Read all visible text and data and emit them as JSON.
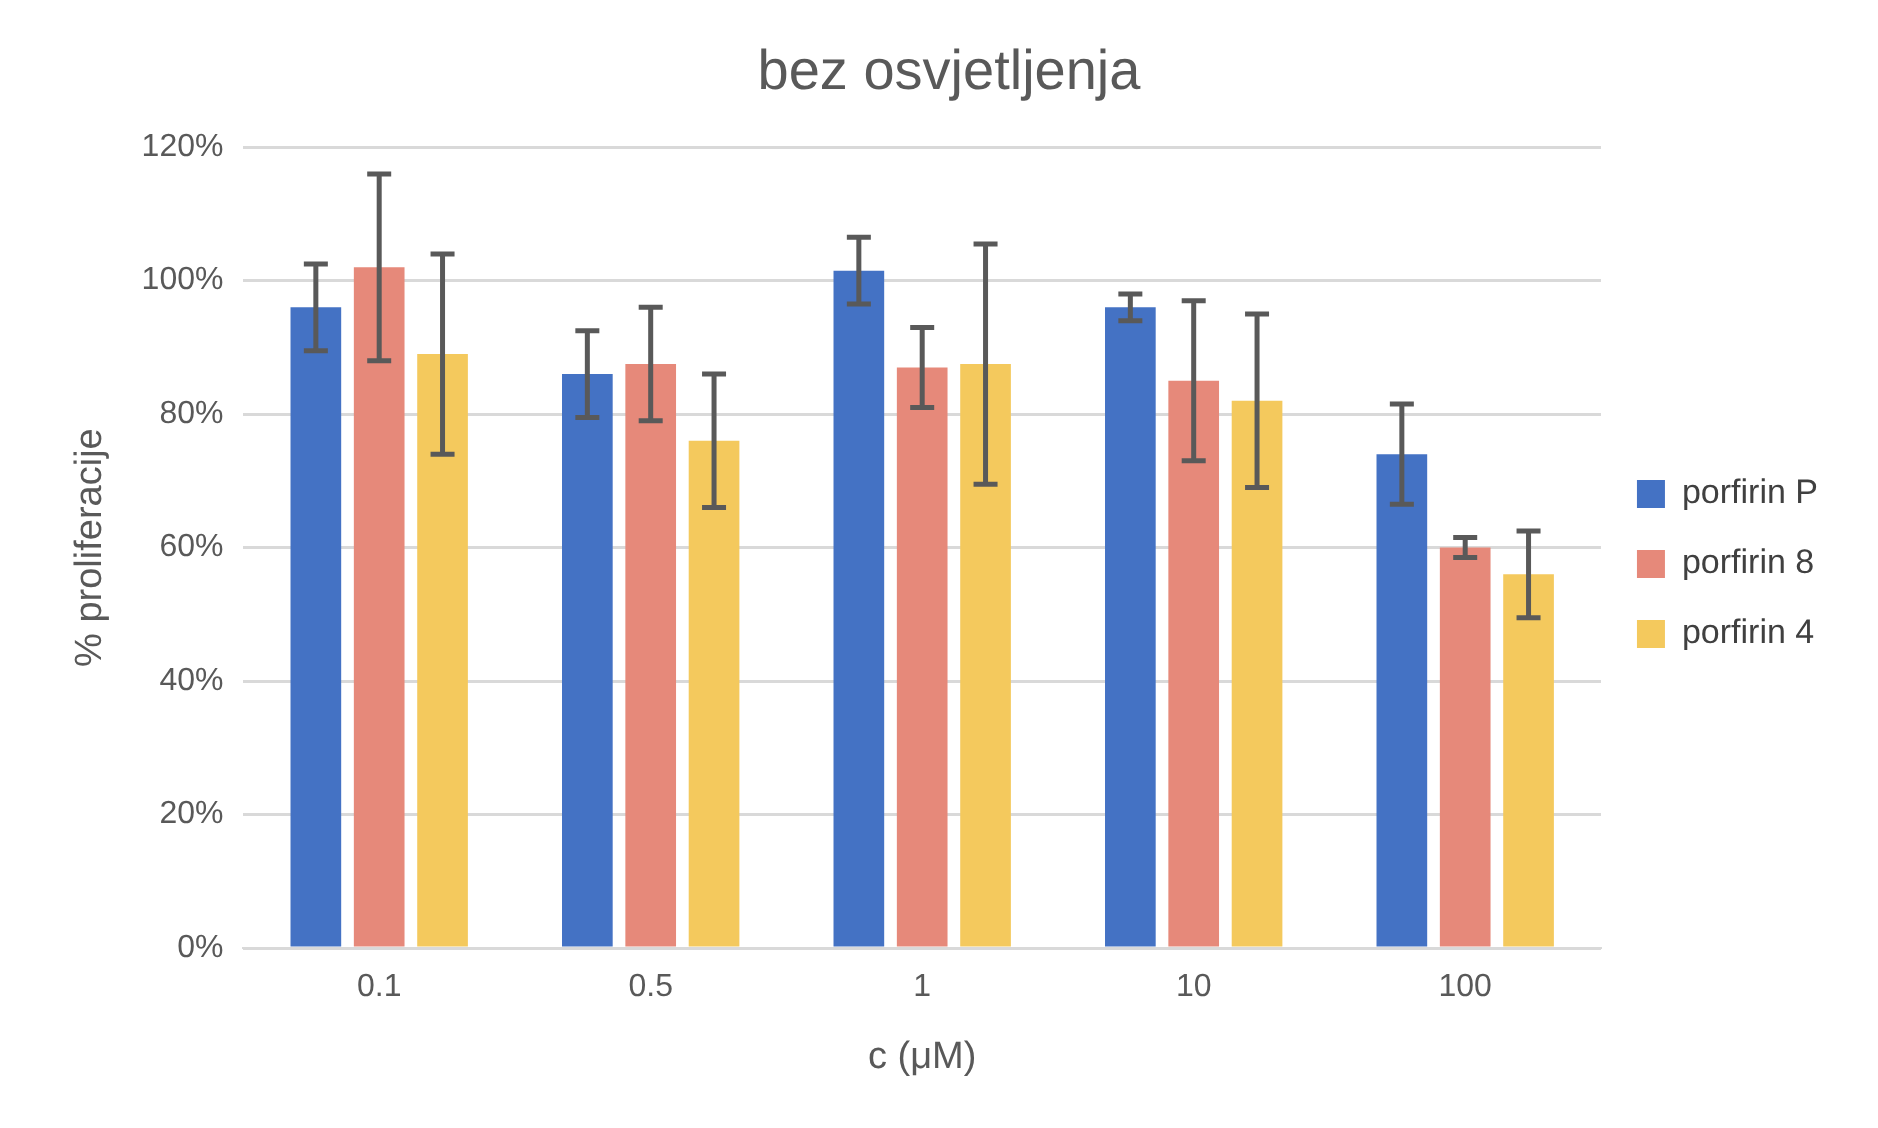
{
  "chart_data": {
    "type": "bar",
    "title": "bez osvjetljenja",
    "xlabel": "c (μM)",
    "ylabel": "% proliferacije",
    "categories": [
      "0.1",
      "0.5",
      "1",
      "10",
      "100"
    ],
    "series": [
      {
        "name": "porfirin P",
        "color": "#4472c4",
        "values": [
          96,
          86,
          101.5,
          96,
          74
        ],
        "errors": [
          6.5,
          6.5,
          5,
          2,
          7.5
        ]
      },
      {
        "name": "porfirin 8",
        "color": "#e6897a",
        "values": [
          102,
          87.5,
          87,
          85,
          60
        ],
        "errors": [
          14,
          8.5,
          6,
          12,
          1.5
        ]
      },
      {
        "name": "porfirin 4",
        "color": "#f4c95d",
        "values": [
          89,
          76,
          87.5,
          82,
          56
        ],
        "errors": [
          15,
          10,
          18,
          13,
          6.5
        ]
      }
    ],
    "ylim": [
      0,
      120
    ],
    "yticks": [
      {
        "value": 0,
        "label": "0%"
      },
      {
        "value": 20,
        "label": "20%"
      },
      {
        "value": 40,
        "label": "40%"
      },
      {
        "value": 60,
        "label": "60%"
      },
      {
        "value": 80,
        "label": "80%"
      },
      {
        "value": 100,
        "label": "100%"
      },
      {
        "value": 120,
        "label": "120%"
      }
    ],
    "grid": "y",
    "legend": "right"
  }
}
